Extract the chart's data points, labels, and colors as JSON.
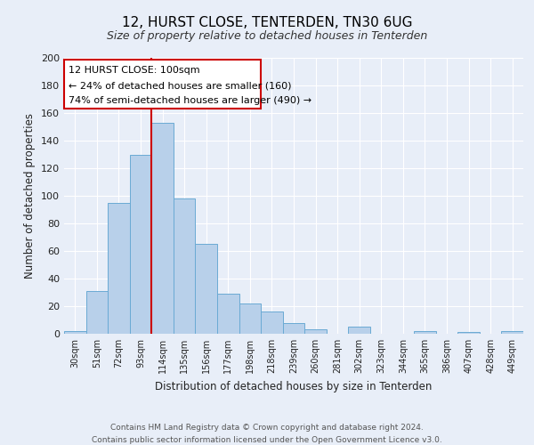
{
  "title": "12, HURST CLOSE, TENTERDEN, TN30 6UG",
  "subtitle": "Size of property relative to detached houses in Tenterden",
  "xlabel": "Distribution of detached houses by size in Tenterden",
  "ylabel": "Number of detached properties",
  "bin_labels": [
    "30sqm",
    "51sqm",
    "72sqm",
    "93sqm",
    "114sqm",
    "135sqm",
    "156sqm",
    "177sqm",
    "198sqm",
    "218sqm",
    "239sqm",
    "260sqm",
    "281sqm",
    "302sqm",
    "323sqm",
    "344sqm",
    "365sqm",
    "386sqm",
    "407sqm",
    "428sqm",
    "449sqm"
  ],
  "bar_heights": [
    2,
    31,
    95,
    130,
    153,
    98,
    65,
    29,
    22,
    16,
    8,
    3,
    0,
    5,
    0,
    0,
    2,
    0,
    1,
    0,
    2
  ],
  "bar_color": "#b8d0ea",
  "bar_edge_color": "#6aaad4",
  "property_line_color": "#cc0000",
  "annotation_title": "12 HURST CLOSE: 100sqm",
  "annotation_line1": "← 24% of detached houses are smaller (160)",
  "annotation_line2": "74% of semi-detached houses are larger (490) →",
  "annotation_box_color": "#cc0000",
  "ylim": [
    0,
    200
  ],
  "yticks": [
    0,
    20,
    40,
    60,
    80,
    100,
    120,
    140,
    160,
    180,
    200
  ],
  "footer1": "Contains HM Land Registry data © Crown copyright and database right 2024.",
  "footer2": "Contains public sector information licensed under the Open Government Licence v3.0.",
  "background_color": "#e8eef8",
  "grid_color": "#ffffff"
}
